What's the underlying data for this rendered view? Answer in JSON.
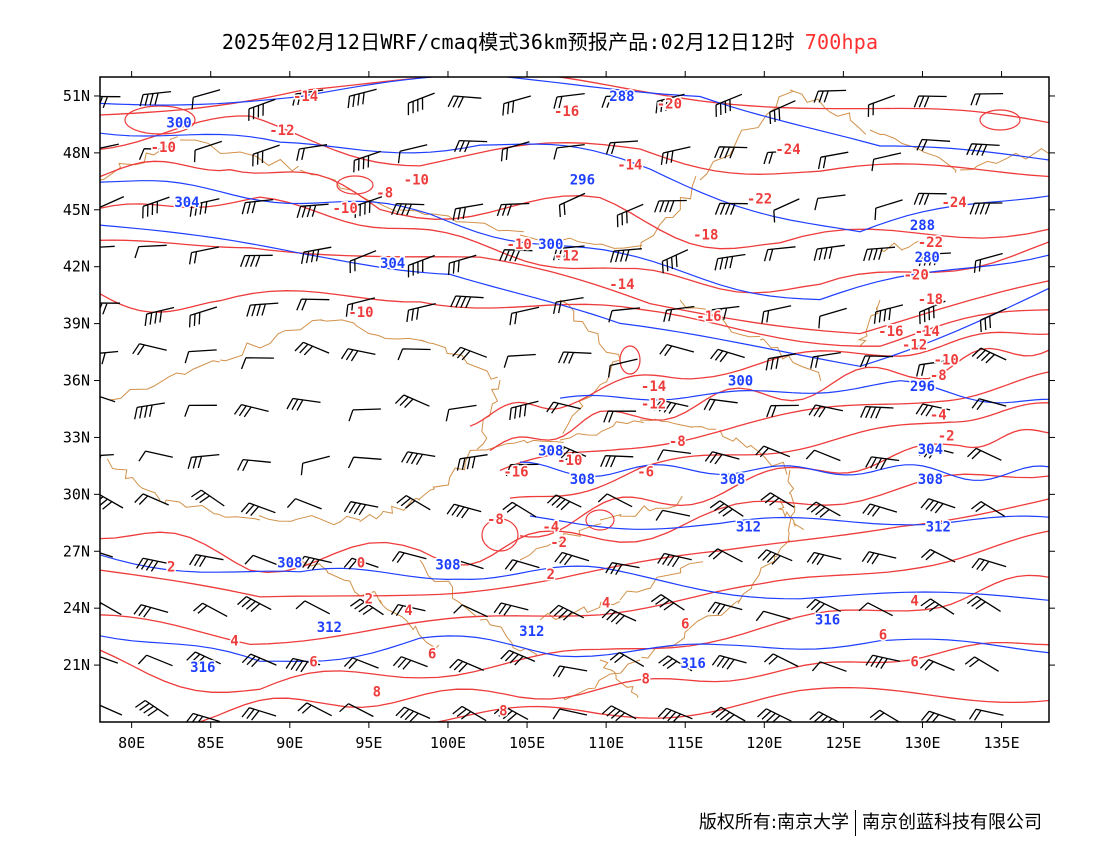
{
  "title": {
    "main": "2025年02月12日WRF/cmaq模式36km预报产品:02月12日12时",
    "level": "700hpa"
  },
  "footer": {
    "left": "版权所有:南京大学",
    "right": "南京创蓝科技有限公司"
  },
  "map": {
    "lon_range": [
      78,
      138
    ],
    "lat_range": [
      18,
      52
    ],
    "lon_ticks": [
      "80E",
      "85E",
      "90E",
      "95E",
      "100E",
      "105E",
      "110E",
      "115E",
      "120E",
      "125E",
      "130E",
      "135E"
    ],
    "lon_tick_values": [
      80,
      85,
      90,
      95,
      100,
      105,
      110,
      115,
      120,
      125,
      130,
      135
    ],
    "lat_ticks": [
      "51N",
      "48N",
      "45N",
      "42N",
      "39N",
      "36N",
      "33N",
      "30N",
      "27N",
      "24N",
      "21N"
    ],
    "lat_tick_values": [
      51,
      48,
      45,
      42,
      39,
      36,
      33,
      30,
      27,
      24,
      21
    ],
    "colors": {
      "height_contours": "#1f3fff",
      "temperature_contours": "#ee3b3b",
      "boundaries": "#d2914a",
      "wind_barbs": "#000000",
      "level_text": "#ff3030"
    },
    "height_labels": [
      {
        "text": "288",
        "lon": 111,
        "lat": 51
      },
      {
        "text": "300",
        "lon": 83,
        "lat": 49.6
      },
      {
        "text": "304",
        "lon": 83.5,
        "lat": 45.4
      },
      {
        "text": "296",
        "lon": 108.5,
        "lat": 46.6
      },
      {
        "text": "300",
        "lon": 106.5,
        "lat": 43.2
      },
      {
        "text": "304",
        "lon": 96.5,
        "lat": 42.2
      },
      {
        "text": "288",
        "lon": 130,
        "lat": 44.2
      },
      {
        "text": "280",
        "lon": 130.3,
        "lat": 42.5
      },
      {
        "text": "300",
        "lon": 118.5,
        "lat": 36
      },
      {
        "text": "296",
        "lon": 130,
        "lat": 35.7
      },
      {
        "text": "308",
        "lon": 106.5,
        "lat": 32.3
      },
      {
        "text": "308",
        "lon": 108.5,
        "lat": 30.8
      },
      {
        "text": "308",
        "lon": 118,
        "lat": 30.8
      },
      {
        "text": "308",
        "lon": 130.5,
        "lat": 30.8
      },
      {
        "text": "304",
        "lon": 130.5,
        "lat": 32.4
      },
      {
        "text": "312",
        "lon": 119,
        "lat": 28.3
      },
      {
        "text": "312",
        "lon": 131,
        "lat": 28.3
      },
      {
        "text": "308",
        "lon": 90,
        "lat": 26.4
      },
      {
        "text": "308",
        "lon": 100,
        "lat": 26.3
      },
      {
        "text": "312",
        "lon": 92.5,
        "lat": 23
      },
      {
        "text": "316",
        "lon": 124,
        "lat": 23.4
      },
      {
        "text": "316",
        "lon": 84.5,
        "lat": 20.9
      },
      {
        "text": "316",
        "lon": 115.5,
        "lat": 21.1
      },
      {
        "text": "312",
        "lon": 105.3,
        "lat": 22.8
      }
    ],
    "temp_labels": [
      {
        "text": "-14",
        "lon": 91,
        "lat": 51
      },
      {
        "text": "-12",
        "lon": 89.5,
        "lat": 49.2
      },
      {
        "text": "-10",
        "lon": 82,
        "lat": 48.3
      },
      {
        "text": "-16",
        "lon": 107.5,
        "lat": 50.2
      },
      {
        "text": "-20",
        "lon": 114,
        "lat": 50.6
      },
      {
        "text": "-14",
        "lon": 111.5,
        "lat": 47.4
      },
      {
        "text": "-24",
        "lon": 121.5,
        "lat": 48.2
      },
      {
        "text": "-10",
        "lon": 98,
        "lat": 46.6
      },
      {
        "text": "-8",
        "lon": 96,
        "lat": 45.9
      },
      {
        "text": "-10",
        "lon": 93.5,
        "lat": 45.1
      },
      {
        "text": "-10",
        "lon": 104.5,
        "lat": 43.2
      },
      {
        "text": "-12",
        "lon": 107.5,
        "lat": 42.6
      },
      {
        "text": "-14",
        "lon": 111,
        "lat": 41.1
      },
      {
        "text": "-18",
        "lon": 116.3,
        "lat": 43.7
      },
      {
        "text": "-22",
        "lon": 119.7,
        "lat": 45.6
      },
      {
        "text": "-24",
        "lon": 132,
        "lat": 45.4
      },
      {
        "text": "-22",
        "lon": 130.5,
        "lat": 43.3
      },
      {
        "text": "-20",
        "lon": 129.6,
        "lat": 41.6
      },
      {
        "text": "-18",
        "lon": 130.5,
        "lat": 40.3
      },
      {
        "text": "-16",
        "lon": 116.5,
        "lat": 39.4
      },
      {
        "text": "-16",
        "lon": 128,
        "lat": 38.6
      },
      {
        "text": "-14",
        "lon": 130.3,
        "lat": 38.6
      },
      {
        "text": "-12",
        "lon": 129.5,
        "lat": 37.9
      },
      {
        "text": "-10",
        "lon": 131.5,
        "lat": 37.1
      },
      {
        "text": "-8",
        "lon": 131,
        "lat": 36.3
      },
      {
        "text": "-10",
        "lon": 94.5,
        "lat": 39.6
      },
      {
        "text": "-14",
        "lon": 113,
        "lat": 35.7
      },
      {
        "text": "-12",
        "lon": 113,
        "lat": 34.8
      },
      {
        "text": "-8",
        "lon": 114.5,
        "lat": 32.8
      },
      {
        "text": "-10",
        "lon": 107.7,
        "lat": 31.8
      },
      {
        "text": "-6",
        "lon": 112.5,
        "lat": 31.2
      },
      {
        "text": "-16",
        "lon": 104.3,
        "lat": 31.2
      },
      {
        "text": "-4",
        "lon": 131,
        "lat": 34.2
      },
      {
        "text": "-2",
        "lon": 131.5,
        "lat": 33.1
      },
      {
        "text": "-8",
        "lon": 103,
        "lat": 28.7
      },
      {
        "text": "-4",
        "lon": 106.5,
        "lat": 28.3
      },
      {
        "text": "-2",
        "lon": 107,
        "lat": 27.5
      },
      {
        "text": "2",
        "lon": 106.5,
        "lat": 25.8
      },
      {
        "text": "0",
        "lon": 94.5,
        "lat": 26.4
      },
      {
        "text": "2",
        "lon": 82.5,
        "lat": 26.2
      },
      {
        "text": "2",
        "lon": 95,
        "lat": 24.5
      },
      {
        "text": "4",
        "lon": 97.5,
        "lat": 23.9
      },
      {
        "text": "4",
        "lon": 110,
        "lat": 24.3
      },
      {
        "text": "4",
        "lon": 129.5,
        "lat": 24.4
      },
      {
        "text": "4",
        "lon": 86.5,
        "lat": 22.3
      },
      {
        "text": "6",
        "lon": 91.5,
        "lat": 21.2
      },
      {
        "text": "6",
        "lon": 99,
        "lat": 21.6
      },
      {
        "text": "6",
        "lon": 115,
        "lat": 23.2
      },
      {
        "text": "6",
        "lon": 127.5,
        "lat": 22.6
      },
      {
        "text": "6",
        "lon": 129.5,
        "lat": 21.2
      },
      {
        "text": "8",
        "lon": 95.5,
        "lat": 19.6
      },
      {
        "text": "8",
        "lon": 112.5,
        "lat": 20.3
      },
      {
        "text": "8",
        "lon": 103.5,
        "lat": 18.6
      }
    ]
  }
}
